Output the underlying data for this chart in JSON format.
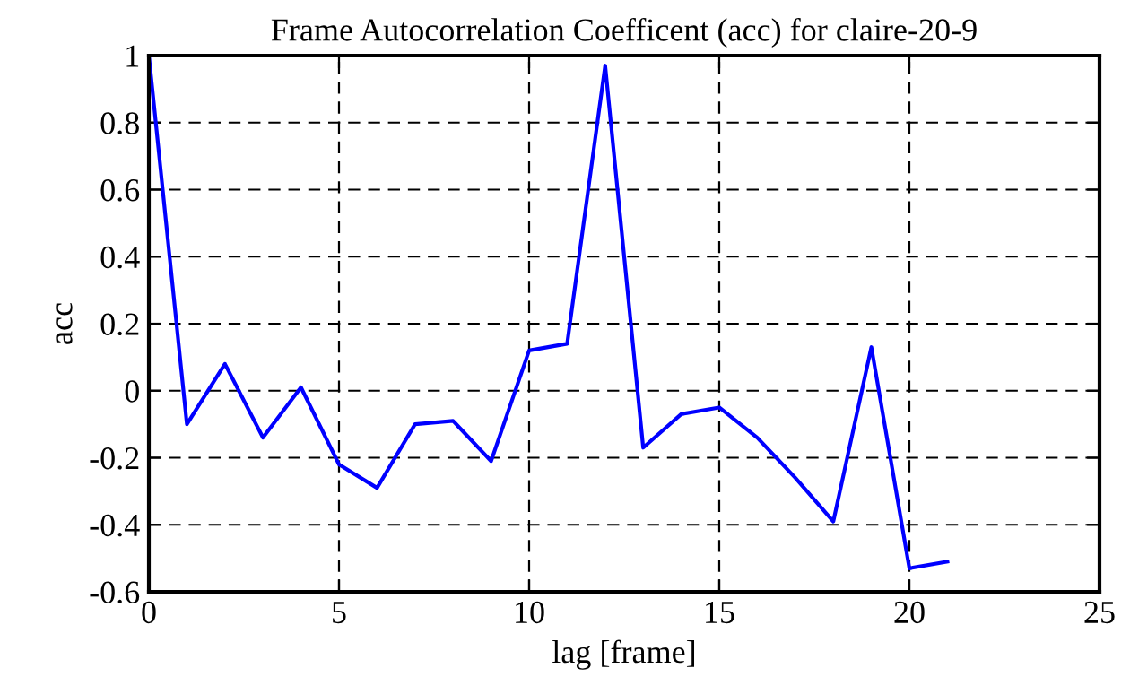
{
  "chart_data": {
    "type": "line",
    "title": "Frame Autocorrelation Coefficent (acc) for claire-20-9",
    "xlabel": "lag [frame]",
    "ylabel": "acc",
    "x": [
      0,
      1,
      2,
      3,
      4,
      5,
      6,
      7,
      8,
      9,
      10,
      11,
      12,
      13,
      14,
      15,
      16,
      17,
      18,
      19,
      20,
      21
    ],
    "series": [
      {
        "color": "#0000ff",
        "values": [
          1,
          -0.1,
          0.08,
          -0.14,
          0.01,
          -0.22,
          -0.29,
          -0.1,
          -0.09,
          -0.21,
          0.12,
          0.14,
          0.97,
          -0.17,
          -0.07,
          -0.05,
          -0.14,
          -0.26,
          -0.39,
          0.13,
          -0.53,
          -0.51
        ]
      }
    ],
    "xlim": [
      0,
      25
    ],
    "xticks": [
      0,
      5,
      10,
      15,
      20,
      25
    ],
    "ylim": [
      -0.6,
      1
    ],
    "yticks": [
      -0.6,
      -0.4,
      -0.2,
      0,
      0.2,
      0.4,
      0.6,
      0.8,
      1
    ],
    "grid": true,
    "line_style": "solid",
    "marker": "none"
  }
}
